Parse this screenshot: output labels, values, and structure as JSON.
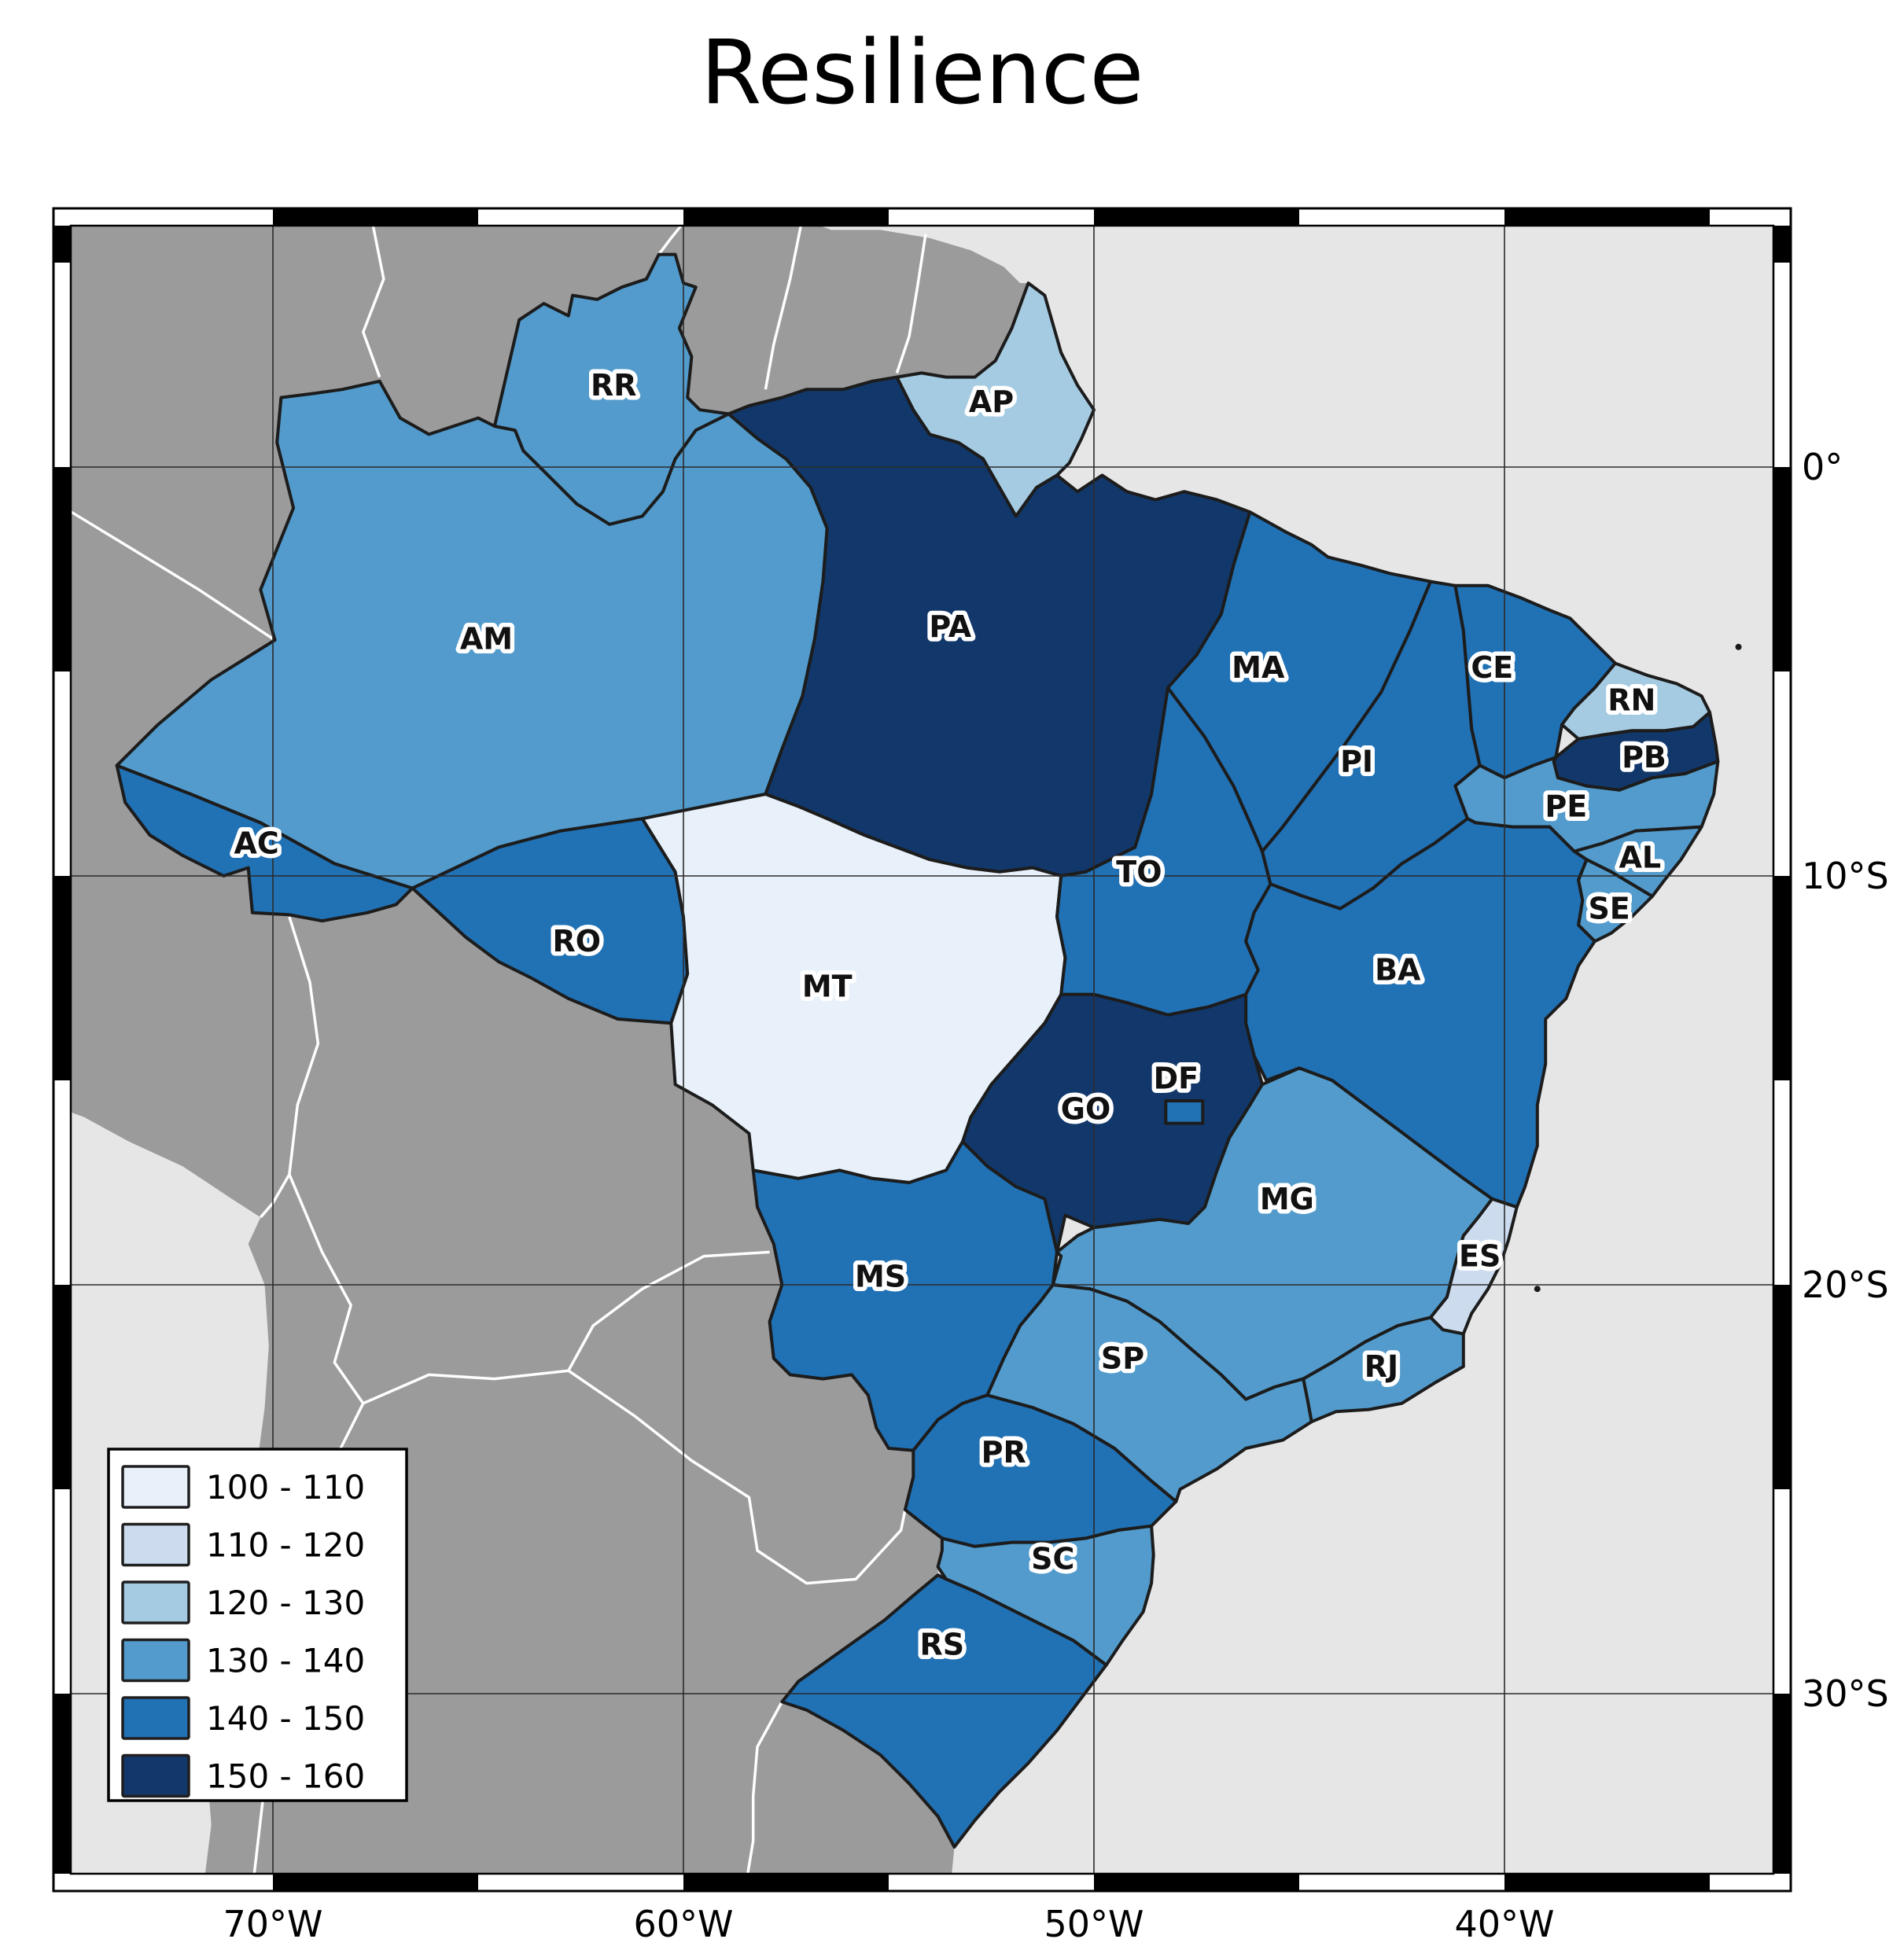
{
  "title": "Resilience",
  "legend": {
    "items": [
      {
        "label": "100 - 110",
        "color": "#e8f1fa"
      },
      {
        "label": "110 - 120",
        "color": "#ccdcee"
      },
      {
        "label": "120 - 130",
        "color": "#a5cbe2"
      },
      {
        "label": "130 - 140",
        "color": "#529bcc"
      },
      {
        "label": "140 - 150",
        "color": "#2171b5"
      },
      {
        "label": "150 - 160",
        "color": "#12386b"
      }
    ]
  },
  "axes": {
    "x_ticks": [
      "70°W",
      "60°W",
      "50°W",
      "40°W"
    ],
    "y_ticks": [
      "0°",
      "10°S",
      "20°S",
      "30°S"
    ]
  },
  "map_colors": {
    "ocean": "#e6e6e6",
    "foreign_land": "#9b9b9b",
    "foreign_border": "#ffffff",
    "state_border": "#1c1c1c",
    "grid": "#2b2b2b",
    "frame_black": "#000000",
    "frame_white": "#ffffff"
  },
  "states": {
    "AC": {
      "label": "AC",
      "class": 4,
      "range": "140 - 150"
    },
    "AL": {
      "label": "AL",
      "class": 3,
      "range": "130 - 140"
    },
    "AM": {
      "label": "AM",
      "class": 3,
      "range": "130 - 140"
    },
    "AP": {
      "label": "AP",
      "class": 2,
      "range": "120 - 130"
    },
    "BA": {
      "label": "BA",
      "class": 4,
      "range": "140 - 150"
    },
    "CE": {
      "label": "CE",
      "class": 4,
      "range": "140 - 150"
    },
    "DF": {
      "label": "DF",
      "class": 4,
      "range": "140 - 150"
    },
    "ES": {
      "label": "ES",
      "class": 1,
      "range": "110 - 120"
    },
    "GO": {
      "label": "GO",
      "class": 5,
      "range": "150 - 160"
    },
    "MA": {
      "label": "MA",
      "class": 4,
      "range": "140 - 150"
    },
    "MG": {
      "label": "MG",
      "class": 3,
      "range": "130 - 140"
    },
    "MS": {
      "label": "MS",
      "class": 4,
      "range": "140 - 150"
    },
    "MT": {
      "label": "MT",
      "class": 0,
      "range": "100 - 110"
    },
    "PA": {
      "label": "PA",
      "class": 5,
      "range": "150 - 160"
    },
    "PB": {
      "label": "PB",
      "class": 5,
      "range": "150 - 160"
    },
    "PE": {
      "label": "PE",
      "class": 3,
      "range": "130 - 140"
    },
    "PI": {
      "label": "PI",
      "class": 4,
      "range": "140 - 150"
    },
    "PR": {
      "label": "PR",
      "class": 4,
      "range": "140 - 150"
    },
    "RJ": {
      "label": "RJ",
      "class": 3,
      "range": "130 - 140"
    },
    "RN": {
      "label": "RN",
      "class": 2,
      "range": "120 - 130"
    },
    "RO": {
      "label": "RO",
      "class": 4,
      "range": "140 - 150"
    },
    "RR": {
      "label": "RR",
      "class": 3,
      "range": "130 - 140"
    },
    "RS": {
      "label": "RS",
      "class": 4,
      "range": "140 - 150"
    },
    "SC": {
      "label": "SC",
      "class": 3,
      "range": "130 - 140"
    },
    "SE": {
      "label": "SE",
      "class": 3,
      "range": "130 - 140"
    },
    "SP": {
      "label": "SP",
      "class": 3,
      "range": "130 - 140"
    },
    "TO": {
      "label": "TO",
      "class": 4,
      "range": "140 - 150"
    }
  },
  "chart_data": {
    "type": "choropleth_map",
    "title": "Resilience",
    "geography": "Brazil federative units",
    "legend_position": "lower left",
    "legend_classes": [
      "100 - 110",
      "110 - 120",
      "120 - 130",
      "130 - 140",
      "140 - 150",
      "150 - 160"
    ],
    "class_colors": [
      "#e8f1fa",
      "#ccdcee",
      "#a5cbe2",
      "#529bcc",
      "#2171b5",
      "#12386b"
    ],
    "state_classes": {
      "AC": "140 - 150",
      "AL": "130 - 140",
      "AM": "130 - 140",
      "AP": "120 - 130",
      "BA": "140 - 150",
      "CE": "140 - 150",
      "DF": "140 - 150",
      "ES": "110 - 120",
      "GO": "150 - 160",
      "MA": "140 - 150",
      "MG": "130 - 140",
      "MS": "140 - 150",
      "MT": "100 - 110",
      "PA": "150 - 160",
      "PB": "150 - 160",
      "PE": "130 - 140",
      "PI": "140 - 150",
      "PR": "140 - 150",
      "RJ": "130 - 140",
      "RN": "120 - 130",
      "RO": "140 - 150",
      "RR": "130 - 140",
      "RS": "140 - 150",
      "SC": "130 - 140",
      "SE": "130 - 140",
      "SP": "130 - 140",
      "TO": "140 - 150"
    },
    "x_axis_ticks": [
      "70°W",
      "60°W",
      "50°W",
      "40°W"
    ],
    "y_axis_ticks": [
      "0°",
      "10°S",
      "20°S",
      "30°S"
    ],
    "grid": true
  }
}
